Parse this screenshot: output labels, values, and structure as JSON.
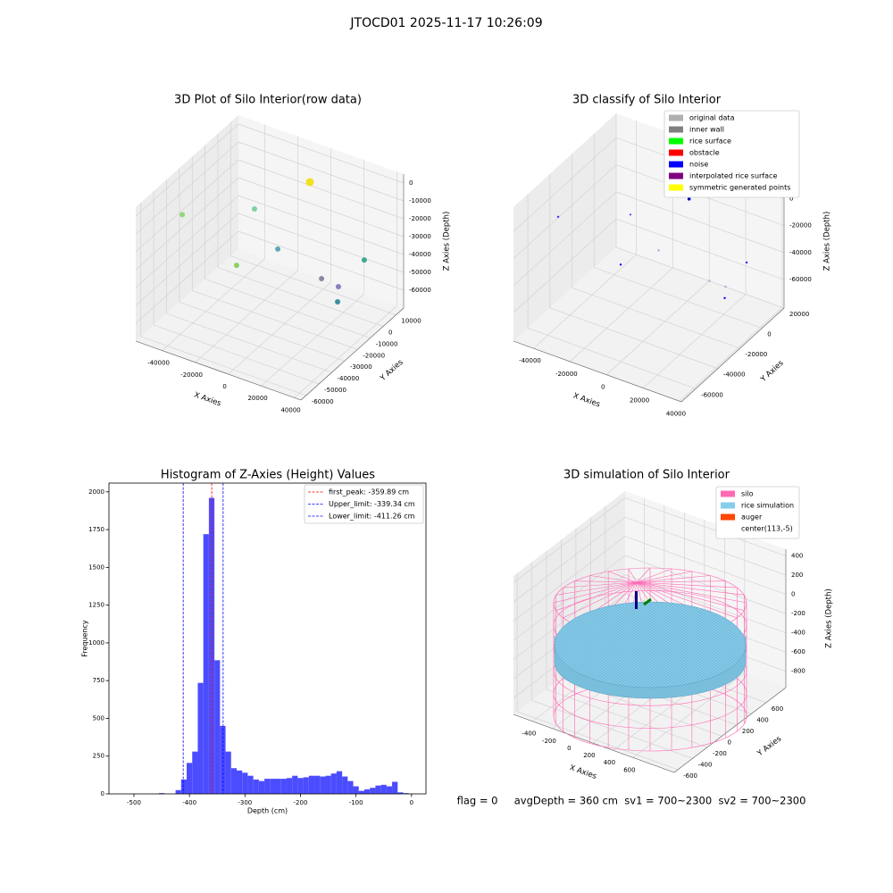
{
  "title": "JTOCD01 2025-11-17 10:26:09",
  "footer": "flag = 0     avgDepth = 360 cm  sv1 = 700~2300  sv2 = 700~2300",
  "chart_data": [
    {
      "type": "scatter3d",
      "title": "3D Plot of Silo Interior(row data)",
      "xlabel": "X Axies",
      "ylabel": "Y Axies",
      "zlabel": "Z Axies (Depth)",
      "xlim": [
        -56000,
        44000
      ],
      "ylim": [
        -64000,
        16000
      ],
      "zlim": [
        -70000,
        5000
      ],
      "xticks": [
        -40000,
        -20000,
        0,
        20000,
        40000
      ],
      "yticks": [
        -60000,
        -50000,
        -40000,
        -30000,
        -20000,
        -10000,
        0,
        10000
      ],
      "zticks": [
        -60000,
        -50000,
        -40000,
        -30000,
        -20000,
        -10000,
        0
      ],
      "point_size": 3,
      "points": {
        "x": [
          -46500,
          -21400,
          -1100,
          -7400,
          31600,
          35600,
          35100,
          32600,
          5900
        ],
        "y": [
          -40000,
          -16000,
          -24000,
          -48000,
          -32000,
          -24000,
          -24000,
          0,
          -8000
        ],
        "z": [
          -11500,
          -15500,
          -26100,
          -21800,
          -26700,
          -35000,
          -43700,
          -36500,
          3400
        ],
        "colors": [
          "#90d878",
          "#7fd0a0",
          "#5fa8b8",
          "#8dd060",
          "#8a8aa8",
          "#8a7fc0",
          "#3a90a0",
          "#40a890",
          "#f0e020"
        ]
      }
    },
    {
      "type": "scatter3d",
      "title": "3D classify of Silo Interior",
      "xlabel": "X Axies",
      "ylabel": "Y Axies",
      "zlabel": "Z Axies (Depth)",
      "xlim": [
        -51000,
        41000
      ],
      "ylim": [
        -73000,
        20000
      ],
      "zlim": [
        -81000,
        18000
      ],
      "xticks": [
        -40000,
        -20000,
        0,
        20000,
        40000
      ],
      "yticks": [
        -60000,
        -40000,
        -20000,
        0,
        20000
      ],
      "zticks": [
        -60000,
        -40000,
        -20000,
        0
      ],
      "point_size": 1.2,
      "points": {
        "x": [
          -46500,
          -21400,
          -1100,
          -7400,
          31600,
          35600,
          35100,
          32600,
          5900
        ],
        "y": [
          -40000,
          -16000,
          -24000,
          -48000,
          -32000,
          -24000,
          -24000,
          0,
          -8000
        ],
        "z": [
          -11500,
          -15500,
          -26100,
          -21800,
          -26700,
          -35000,
          -43700,
          -36500,
          3400
        ],
        "colors": [
          "#3030ff",
          "#6060ff",
          "#9aa8d8",
          "#0000ff",
          "#b0a8d8",
          "#a8a8e0",
          "#0000ff",
          "#2020ff",
          "#0000c0"
        ]
      },
      "legend": [
        {
          "name": "original data",
          "color": "#b0b0b0"
        },
        {
          "name": "inner wall",
          "color": "#808080"
        },
        {
          "name": "rice surface",
          "color": "#00ff00"
        },
        {
          "name": "obstacle",
          "color": "#ff0000"
        },
        {
          "name": "noise",
          "color": "#0000ff"
        },
        {
          "name": "interpolated rice surface",
          "color": "#800080"
        },
        {
          "name": "symmetric generated points",
          "color": "#ffff00"
        }
      ]
    },
    {
      "type": "histogram",
      "title": "Histogram of Z-Axies (Height) Values",
      "xlabel": "Depth (cm)",
      "ylabel": "Frequency",
      "color": "#4c4cff",
      "xlim": [
        -545,
        26
      ],
      "ylim": [
        0,
        2058
      ],
      "xticks": [
        -500,
        -400,
        -300,
        -200,
        -100,
        0
      ],
      "yticks": [
        0,
        250,
        500,
        750,
        1000,
        1250,
        1500,
        1750,
        2000
      ],
      "bins": [
        -525,
        -515,
        -505,
        -495,
        -485,
        -475,
        -465,
        -455,
        -445,
        -435,
        -425,
        -415,
        -405,
        -395,
        -385,
        -375,
        -365,
        -355,
        -345,
        -335,
        -325,
        -315,
        -305,
        -295,
        -285,
        -275,
        -265,
        -255,
        -245,
        -235,
        -225,
        -215,
        -205,
        -195,
        -185,
        -175,
        -165,
        -155,
        -145,
        -135,
        -125,
        -115,
        -105,
        -95,
        -85,
        -75,
        -65,
        -55,
        -45,
        -35,
        -25,
        -15,
        -5,
        5
      ],
      "counts": [
        0,
        0,
        0,
        0,
        0,
        0,
        0,
        5,
        0,
        0,
        25,
        95,
        205,
        280,
        735,
        1720,
        1960,
        885,
        450,
        280,
        170,
        155,
        140,
        120,
        95,
        85,
        100,
        100,
        100,
        100,
        105,
        120,
        105,
        110,
        120,
        120,
        115,
        120,
        135,
        150,
        115,
        85,
        50,
        20,
        30,
        40,
        55,
        60,
        50,
        80,
        10,
        5,
        0
      ],
      "lines": [
        {
          "name": "first_peak: -359.89 cm",
          "value": -359.89,
          "color": "#ff0000"
        },
        {
          "name": "Upper_limit: -339.34 cm",
          "value": -339.34,
          "color": "#0000ff"
        },
        {
          "name": "Lower_limit: -411.26 cm",
          "value": -411.26,
          "color": "#0000ff"
        }
      ]
    },
    {
      "type": "wireframe3d",
      "title": "3D simulation of Silo Interior",
      "xlabel": "X Axies",
      "ylabel": "Y Axies",
      "zlabel": "Z Axies (Depth)",
      "xlim": [
        -590,
        1010
      ],
      "ylim": [
        -650,
        870
      ],
      "zlim": [
        -970,
        470
      ],
      "xticks": [
        -400,
        -200,
        0,
        200,
        400,
        600
      ],
      "yticks": [
        -600,
        -400,
        -200,
        0,
        200,
        400,
        600
      ],
      "zticks": [
        -800,
        -600,
        -400,
        -200,
        0,
        200,
        400
      ],
      "legend": [
        {
          "name": "silo",
          "color": "#ff69b4"
        },
        {
          "name": "rice simulation",
          "color": "#87ceeb"
        },
        {
          "name": "auger",
          "color": "#ff4500"
        },
        {
          "name": "center(113,-5)",
          "color": "#ffffff"
        }
      ]
    }
  ]
}
